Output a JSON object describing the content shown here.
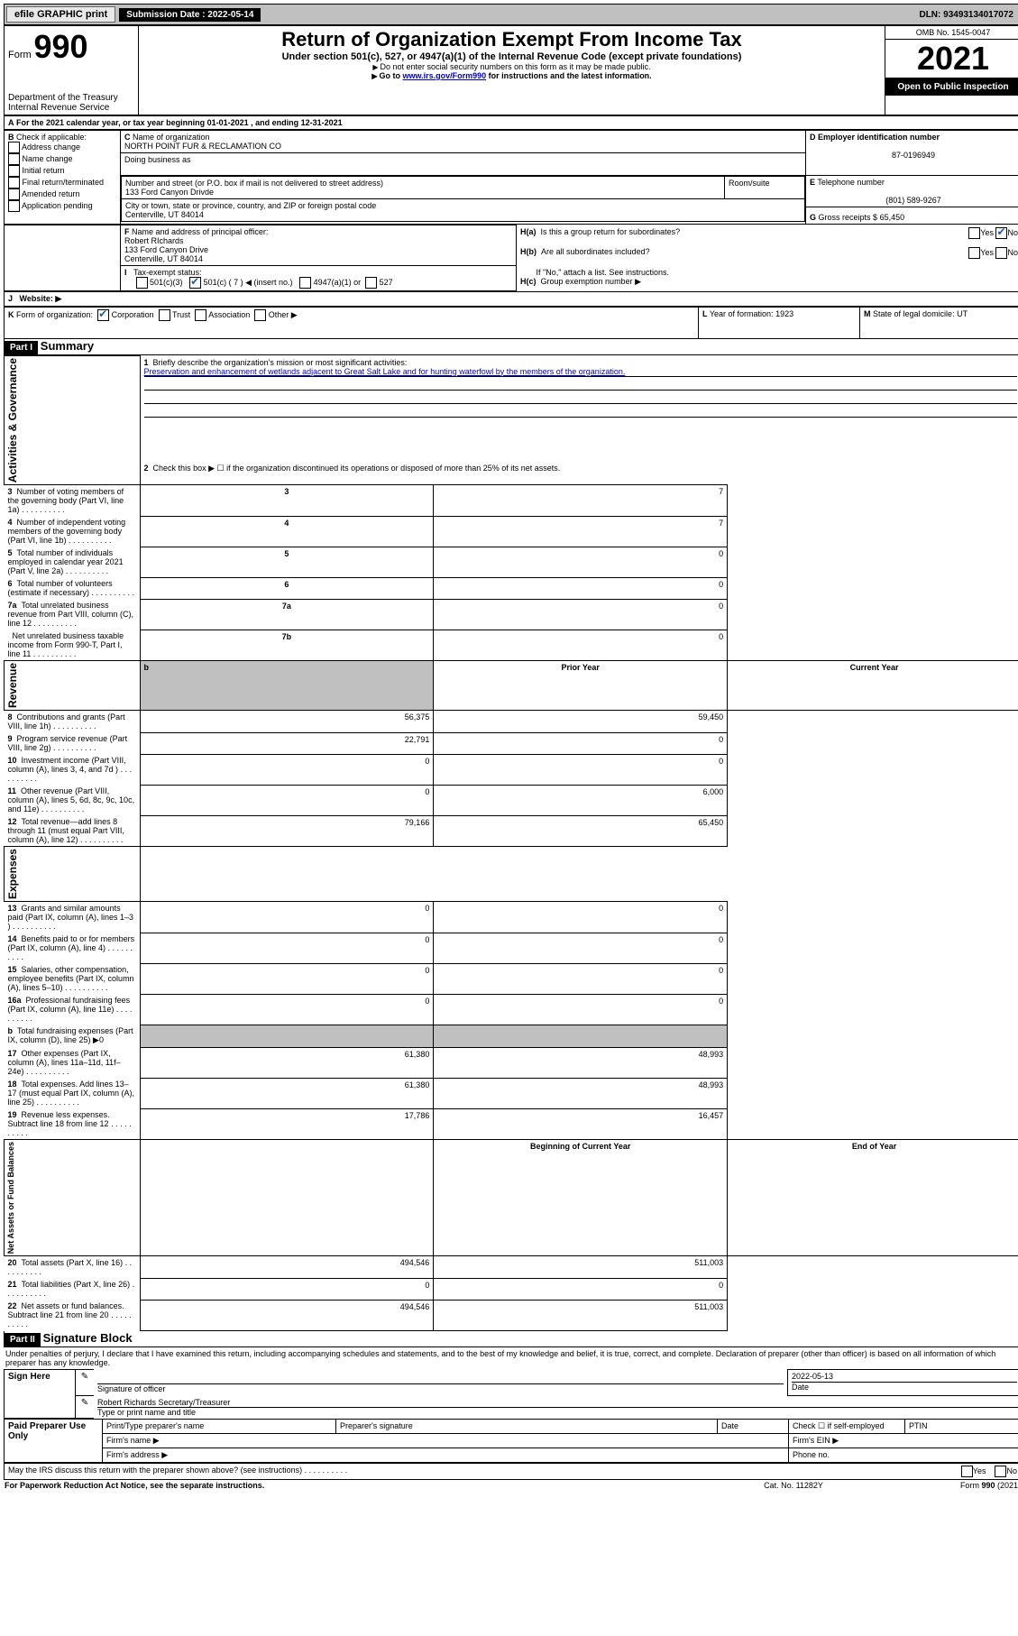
{
  "topbar": {
    "efile": "efile GRAPHIC print",
    "submission_label": "Submission Date : 2022-05-14",
    "dln": "DLN: 93493134017072"
  },
  "header": {
    "form_word": "Form",
    "form_no": "990",
    "title": "Return of Organization Exempt From Income Tax",
    "sub1": "Under section 501(c), 527, or 4947(a)(1) of the Internal Revenue Code (except private foundations)",
    "sub2": "Do not enter social security numbers on this form as it may be made public.",
    "sub3_prefix": "Go to ",
    "sub3_link": "www.irs.gov/Form990",
    "sub3_suffix": " for instructions and the latest information.",
    "dept": "Department of the Treasury",
    "irs": "Internal Revenue Service",
    "omb": "OMB No. 1545-0047",
    "year": "2021",
    "open": "Open to Public Inspection"
  },
  "A": {
    "text": "For the 2021 calendar year, or tax year beginning 01-01-2021    , and ending 12-31-2021"
  },
  "B": {
    "label": "Check if applicable:",
    "opts": [
      "Address change",
      "Name change",
      "Initial return",
      "Final return/terminated",
      "Amended return",
      "Application pending"
    ]
  },
  "C": {
    "name_label": "Name of organization",
    "name": "NORTH POINT FUR & RECLAMATION CO",
    "dba_label": "Doing business as",
    "dba": "",
    "street_label": "Number and street (or P.O. box if mail is not delivered to street address)",
    "room_label": "Room/suite",
    "street": "133 Ford Canyon Drivde",
    "city_label": "City or town, state or province, country, and ZIP or foreign postal code",
    "city": "Centerville, UT  84014"
  },
  "D": {
    "label": "Employer identification number",
    "value": "87-0196949"
  },
  "E": {
    "label": "Telephone number",
    "value": "(801) 589-9267"
  },
  "G": {
    "label": "Gross receipts $",
    "value": "65,450"
  },
  "F": {
    "label": "Name and address of principal officer:",
    "name": "Robert RIchards",
    "addr1": "133 Ford Canyon Drive",
    "addr2": "Centerville, UT  84014"
  },
  "H": {
    "a": "Is this a group return for subordinates?",
    "b": "Are all subordinates included?",
    "b_note": "If \"No,\" attach a list. See instructions.",
    "c": "Group exemption number ▶",
    "yes": "Yes",
    "no": "No"
  },
  "I": {
    "label": "Tax-exempt status:",
    "o1": "501(c)(3)",
    "o2": "501(c) ( 7 ) ◀ (insert no.)",
    "o3": "4947(a)(1) or",
    "o4": "527"
  },
  "J": {
    "label": "Website: ▶",
    "value": ""
  },
  "K": {
    "label": "Form of organization:",
    "o1": "Corporation",
    "o2": "Trust",
    "o3": "Association",
    "o4": "Other ▶"
  },
  "L": {
    "label": "Year of formation:",
    "value": "1923"
  },
  "M": {
    "label": "State of legal domicile:",
    "value": "UT"
  },
  "part1": {
    "header": "Part I",
    "title": "Summary",
    "l1_label": "Briefly describe the organization's mission or most significant activities:",
    "l1_text": "Preservation and enhancement of wetlands adjacent to Great Salt Lake and for hunting waterfowl by the members of the organization.",
    "l2": "Check this box ▶ ☐  if the organization discontinued its operations or disposed of more than 25% of its net assets.",
    "governance_rows": [
      {
        "n": "3",
        "t": "Number of voting members of the governing body (Part VI, line 1a)",
        "box": "3",
        "v": "7"
      },
      {
        "n": "4",
        "t": "Number of independent voting members of the governing body (Part VI, line 1b)",
        "box": "4",
        "v": "7"
      },
      {
        "n": "5",
        "t": "Total number of individuals employed in calendar year 2021 (Part V, line 2a)",
        "box": "5",
        "v": "0"
      },
      {
        "n": "6",
        "t": "Total number of volunteers (estimate if necessary)",
        "box": "6",
        "v": "0"
      },
      {
        "n": "7a",
        "t": "Total unrelated business revenue from Part VIII, column (C), line 12",
        "box": "7a",
        "v": "0"
      },
      {
        "n": "",
        "t": "Net unrelated business taxable income from Form 990-T, Part I, line 11",
        "box": "7b",
        "v": "0"
      }
    ],
    "col_prior": "Prior Year",
    "col_current": "Current Year",
    "revenue_rows": [
      {
        "n": "8",
        "t": "Contributions and grants (Part VIII, line 1h)",
        "p": "56,375",
        "c": "59,450"
      },
      {
        "n": "9",
        "t": "Program service revenue (Part VIII, line 2g)",
        "p": "22,791",
        "c": "0"
      },
      {
        "n": "10",
        "t": "Investment income (Part VIII, column (A), lines 3, 4, and 7d )",
        "p": "0",
        "c": "0"
      },
      {
        "n": "11",
        "t": "Other revenue (Part VIII, column (A), lines 5, 6d, 8c, 9c, 10c, and 11e)",
        "p": "0",
        "c": "6,000"
      },
      {
        "n": "12",
        "t": "Total revenue—add lines 8 through 11 (must equal Part VIII, column (A), line 12)",
        "p": "79,166",
        "c": "65,450"
      }
    ],
    "expense_rows": [
      {
        "n": "13",
        "t": "Grants and similar amounts paid (Part IX, column (A), lines 1–3 )",
        "p": "0",
        "c": "0"
      },
      {
        "n": "14",
        "t": "Benefits paid to or for members (Part IX, column (A), line 4)",
        "p": "0",
        "c": "0"
      },
      {
        "n": "15",
        "t": "Salaries, other compensation, employee benefits (Part IX, column (A), lines 5–10)",
        "p": "0",
        "c": "0"
      },
      {
        "n": "16a",
        "t": "Professional fundraising fees (Part IX, column (A), line 11e)",
        "p": "0",
        "c": "0"
      },
      {
        "n": "b",
        "t": "Total fundraising expenses (Part IX, column (D), line 25) ▶0",
        "p": "",
        "c": "",
        "shade": true
      },
      {
        "n": "17",
        "t": "Other expenses (Part IX, column (A), lines 11a–11d, 11f–24e)",
        "p": "61,380",
        "c": "48,993"
      },
      {
        "n": "18",
        "t": "Total expenses. Add lines 13–17 (must equal Part IX, column (A), line 25)",
        "p": "61,380",
        "c": "48,993"
      },
      {
        "n": "19",
        "t": "Revenue less expenses. Subtract line 18 from line 12",
        "p": "17,786",
        "c": "16,457"
      }
    ],
    "col_begin": "Beginning of Current Year",
    "col_end": "End of Year",
    "net_rows": [
      {
        "n": "20",
        "t": "Total assets (Part X, line 16)",
        "p": "494,546",
        "c": "511,003"
      },
      {
        "n": "21",
        "t": "Total liabilities (Part X, line 26)",
        "p": "0",
        "c": "0"
      },
      {
        "n": "22",
        "t": "Net assets or fund balances. Subtract line 21 from line 20",
        "p": "494,546",
        "c": "511,003"
      }
    ],
    "vlab_gov": "Activities & Governance",
    "vlab_rev": "Revenue",
    "vlab_exp": "Expenses",
    "vlab_net": "Net Assets or Fund Balances"
  },
  "part2": {
    "header": "Part II",
    "title": "Signature Block",
    "declaration": "Under penalties of perjury, I declare that I have examined this return, including accompanying schedules and statements, and to the best of my knowledge and belief, it is true, correct, and complete. Declaration of preparer (other than officer) is based on all information of which preparer has any knowledge.",
    "sign_here": "Sign Here",
    "sig_officer": "Signature of officer",
    "date_label": "Date",
    "date": "2022-05-13",
    "name_title": "Robert Richards  Secretary/Treasurer",
    "type_label": "Type or print name and title",
    "paid": "Paid Preparer Use Only",
    "prep_name": "Print/Type preparer's name",
    "prep_sig": "Preparer's signature",
    "check_self": "Check ☐ if self-employed",
    "ptin": "PTIN",
    "firm_name": "Firm's name   ▶",
    "firm_ein": "Firm's EIN ▶",
    "firm_addr": "Firm's address ▶",
    "phone": "Phone no.",
    "discuss": "May the IRS discuss this return with the preparer shown above? (see instructions)",
    "paperwork": "For Paperwork Reduction Act Notice, see the separate instructions.",
    "cat": "Cat. No. 11282Y",
    "form_foot": "Form 990 (2021)"
  }
}
